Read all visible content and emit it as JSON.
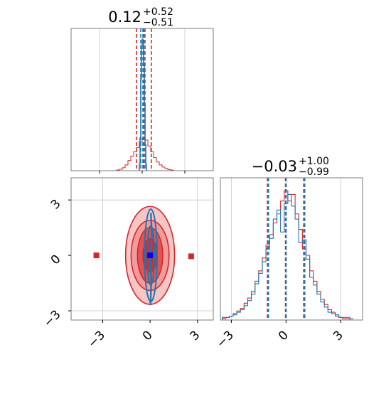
{
  "colors": {
    "red": "#d62728",
    "blue": "#1f77b4",
    "marker_blue": "#0000ff",
    "red_fill_light": "#f0a3a3",
    "red_fill_mid": "#e36b6b"
  },
  "chart_data": [
    {
      "type": "histogram",
      "panel": "top-left",
      "title": {
        "value": "0.12",
        "plus": "+0.52",
        "minus": "−0.51"
      },
      "xlim": [
        -5,
        5
      ],
      "grid": true,
      "bin_width": 0.2,
      "quantile_lines": {
        "red": [
          -0.4,
          0.12,
          0.64
        ],
        "blue": [
          -0.1,
          0.05,
          0.2
        ]
      },
      "series": [
        {
          "name": "red",
          "color": "#d62728",
          "bins_x": [
            -1.8,
            -1.6,
            -1.4,
            -1.2,
            -1.0,
            -0.8,
            -0.6,
            -0.4,
            -0.2,
            0.0,
            0.2,
            0.4,
            0.6,
            0.8,
            1.0,
            1.2,
            1.4,
            1.6,
            1.8,
            2.0
          ],
          "counts": [
            0.005,
            0.01,
            0.02,
            0.04,
            0.07,
            0.1,
            0.13,
            0.16,
            0.2,
            0.22,
            0.21,
            0.17,
            0.13,
            0.09,
            0.06,
            0.04,
            0.025,
            0.015,
            0.008,
            0.004
          ]
        },
        {
          "name": "blue",
          "color": "#1f77b4",
          "bins_x": [
            -0.2,
            -0.15,
            -0.1,
            -0.05,
            0.0,
            0.05,
            0.1,
            0.15,
            0.2,
            0.25
          ],
          "counts": [
            0.05,
            0.25,
            0.7,
            0.95,
            1.0,
            0.98,
            0.82,
            0.5,
            0.2,
            0.05
          ]
        }
      ]
    },
    {
      "type": "histogram",
      "panel": "bottom-right",
      "title": {
        "value": "−0.03",
        "plus": "+1.00",
        "minus": "−0.99"
      },
      "xlim": [
        -3.6,
        4.2
      ],
      "xticks": [
        "−3",
        "0",
        "3"
      ],
      "grid": true,
      "quantile_lines": {
        "red": [
          -1.02,
          -0.03,
          0.97
        ],
        "blue": [
          -1.0,
          -0.03,
          0.99
        ]
      },
      "series": [
        {
          "name": "red",
          "color": "#d62728",
          "bins_x": [
            -3.5,
            -3.3,
            -3.1,
            -2.9,
            -2.7,
            -2.5,
            -2.3,
            -2.1,
            -1.9,
            -1.7,
            -1.5,
            -1.3,
            -1.1,
            -0.9,
            -0.7,
            -0.5,
            -0.3,
            -0.1,
            0.1,
            0.3,
            0.5,
            0.7,
            0.9,
            1.1,
            1.3,
            1.5,
            1.7,
            1.9,
            2.1,
            2.3,
            2.5,
            2.7,
            2.9,
            3.1,
            3.3,
            3.5
          ],
          "counts": [
            0.01,
            0.02,
            0.03,
            0.05,
            0.07,
            0.09,
            0.13,
            0.17,
            0.22,
            0.3,
            0.38,
            0.48,
            0.58,
            0.66,
            0.75,
            0.82,
            0.92,
            1.0,
            0.92,
            0.97,
            0.82,
            0.7,
            0.55,
            0.5,
            0.38,
            0.3,
            0.22,
            0.16,
            0.12,
            0.08,
            0.06,
            0.03,
            0.02,
            0.01,
            0.01,
            0.0
          ]
        },
        {
          "name": "blue",
          "color": "#1f77b4",
          "bins_x": [
            -3.5,
            -3.3,
            -3.1,
            -2.9,
            -2.7,
            -2.5,
            -2.3,
            -2.1,
            -1.9,
            -1.7,
            -1.5,
            -1.3,
            -1.1,
            -0.9,
            -0.7,
            -0.5,
            -0.3,
            -0.1,
            0.1,
            0.3,
            0.5,
            0.7,
            0.9,
            1.1,
            1.3,
            1.5,
            1.7,
            1.9,
            2.1,
            2.3,
            2.5,
            2.7,
            2.9,
            3.1,
            3.3,
            3.5
          ],
          "counts": [
            0.02,
            0.02,
            0.03,
            0.04,
            0.06,
            0.08,
            0.11,
            0.15,
            0.2,
            0.28,
            0.36,
            0.45,
            0.55,
            0.63,
            0.78,
            0.85,
            0.68,
            0.9,
            0.97,
            0.88,
            0.78,
            0.6,
            0.62,
            0.47,
            0.33,
            0.27,
            0.2,
            0.14,
            0.1,
            0.06,
            0.05,
            0.04,
            0.02,
            0.02,
            0.02,
            0.01
          ]
        }
      ]
    },
    {
      "type": "scatter",
      "panel": "bottom-left",
      "xlim": [
        -5,
        4
      ],
      "ylim": [
        -3.5,
        4.2
      ],
      "xticks": [
        "−3",
        "0",
        "3"
      ],
      "yticks": [
        "3",
        "0",
        "−3"
      ],
      "grid": true,
      "contours": {
        "red": [
          {
            "level": "outer",
            "rx": 1.55,
            "ry": 2.65,
            "fill": "#f5c2c2"
          },
          {
            "level": "mid",
            "rx": 1.2,
            "ry": 1.9,
            "fill": "#ee9a9a"
          },
          {
            "level": "inner",
            "rx": 0.8,
            "ry": 1.5,
            "fill": "#e05050"
          },
          {
            "level": "core",
            "rx": 0.45,
            "ry": 0.9,
            "fill": "#d62728"
          }
        ],
        "blue": [
          {
            "level": "outer",
            "rx": 0.4,
            "ry": 2.5
          },
          {
            "level": "inner",
            "rx": 0.22,
            "ry": 1.6
          }
        ]
      },
      "markers": [
        {
          "x": -3.4,
          "y": 0.0,
          "color": "#d62728",
          "shape": "square"
        },
        {
          "x": 2.6,
          "y": -0.05,
          "color": "#d62728",
          "shape": "square"
        },
        {
          "x": 0.0,
          "y": 0.0,
          "color": "#0000ff",
          "shape": "square"
        }
      ],
      "blue_line": {
        "x": [
          0.05,
          0.12,
          -0.02,
          0.08,
          0.02
        ],
        "y": [
          2.3,
          1.0,
          0.0,
          -1.4,
          -2.7
        ]
      }
    }
  ]
}
